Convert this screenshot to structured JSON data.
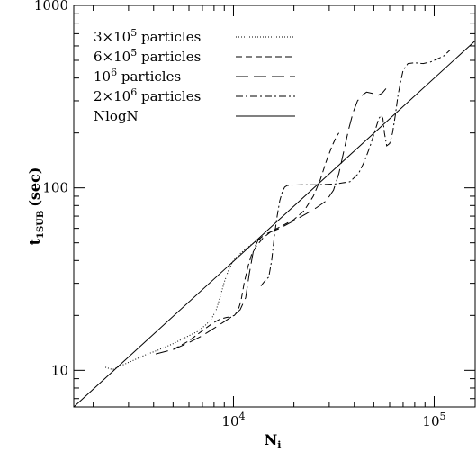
{
  "chart_data": {
    "type": "line",
    "xlabel": "N",
    "xlabel_sub": "i",
    "ylabel": "t",
    "ylabel_sub": "1SUB",
    "ylabel_unit": "(sec)",
    "xscale": "log",
    "yscale": "log",
    "xlim": [
      1600,
      160000
    ],
    "ylim": [
      6.3,
      1000
    ],
    "x_ticks": [
      {
        "value": 10000,
        "base": "10",
        "exp": "4"
      },
      {
        "value": 100000,
        "base": "10",
        "exp": "5"
      }
    ],
    "y_ticks": [
      {
        "value": 10,
        "label": "10"
      },
      {
        "value": 100,
        "label": "100"
      },
      {
        "value": 1000,
        "label": "1000"
      }
    ],
    "grid": false,
    "legend_position": "top-left",
    "series": [
      {
        "name_parts": [
          "3×10",
          "5",
          " particles"
        ],
        "style": "dotted",
        "x": [
          2300,
          2500,
          2800,
          3200,
          3600,
          4200,
          5000,
          5800,
          6600,
          7300,
          7800,
          8200,
          8600,
          9000,
          9500,
          10000,
          10600,
          11300,
          12000,
          12800,
          13600
        ],
        "y": [
          10.4,
          10.1,
          10.7,
          11.4,
          12.1,
          12.9,
          14.0,
          15.2,
          16.3,
          17.8,
          19.3,
          21.5,
          25.5,
          30.5,
          36.0,
          40.0,
          43.0,
          45.5,
          48.0,
          50.5,
          52.5
        ]
      },
      {
        "name_parts": [
          "6×10",
          "5",
          " particles"
        ],
        "style": "dashed",
        "x": [
          5000,
          6000,
          7000,
          7800,
          8500,
          9200,
          9700,
          10100,
          10500,
          10900,
          11300,
          11800,
          12300,
          13000,
          14000,
          15500,
          17500,
          20000,
          22500,
          25000,
          27000,
          29000,
          31000,
          32500,
          33500
        ],
        "y": [
          13.0,
          14.5,
          16.5,
          18.0,
          19.0,
          19.5,
          19.7,
          20.0,
          21.0,
          24.0,
          30.0,
          37.0,
          43.0,
          48.0,
          53.0,
          58.0,
          62.0,
          67.0,
          75.0,
          90.0,
          110.0,
          140.0,
          170.0,
          190.0,
          200.0
        ]
      },
      {
        "name_parts": [
          "10",
          "6",
          " particles"
        ],
        "style": "long-dashed",
        "x": [
          4100,
          5000,
          6000,
          7000,
          8000,
          9000,
          10000,
          10800,
          11500,
          12000,
          12600,
          13300,
          14500,
          17000,
          20000,
          23000,
          26000,
          29000,
          31500,
          33500,
          35500,
          37500,
          39500,
          41500,
          43500,
          46000,
          49000,
          52000,
          55000,
          57500
        ],
        "y": [
          12.3,
          13.0,
          14.2,
          15.5,
          17.0,
          18.5,
          20.0,
          21.5,
          25.0,
          34.0,
          46.0,
          52.0,
          56.0,
          60.0,
          66.0,
          72.0,
          78.0,
          85.0,
          97.0,
          120.0,
          160.0,
          210.0,
          260.0,
          300.0,
          320.0,
          335.0,
          330.0,
          320.0,
          330.0,
          350.0
        ]
      },
      {
        "name_parts": [
          "2×10",
          "6",
          " particles"
        ],
        "style": "dash-dot",
        "x": [
          13700,
          14200,
          14600,
          15000,
          15500,
          16000,
          16500,
          17000,
          17500,
          18000,
          18500,
          19500,
          22000,
          26000,
          32000,
          38000,
          42000,
          45000,
          48000,
          51000,
          53000,
          54500,
          55500,
          56500,
          58000,
          60000,
          62000,
          64000,
          66000,
          68000,
          70000,
          74000,
          80000,
          88000,
          96000,
          104000,
          112000,
          120000
        ],
        "y": [
          29.0,
          30.5,
          31.5,
          32.5,
          40.0,
          55.0,
          70.0,
          85.0,
          95.0,
          101.0,
          103.0,
          103.5,
          104.0,
          104.0,
          105.0,
          108.0,
          120.0,
          140.0,
          170.0,
          210.0,
          240.0,
          250.0,
          240.0,
          200.0,
          170.0,
          175.0,
          200.0,
          250.0,
          320.0,
          380.0,
          440.0,
          480.0,
          485.0,
          480.0,
          490.0,
          510.0,
          530.0,
          570.0
        ]
      },
      {
        "name_parts": [
          "NlogN",
          "",
          ""
        ],
        "style": "solid",
        "x": [
          1600,
          160000
        ],
        "y": [
          6.3,
          640.0
        ]
      }
    ]
  }
}
